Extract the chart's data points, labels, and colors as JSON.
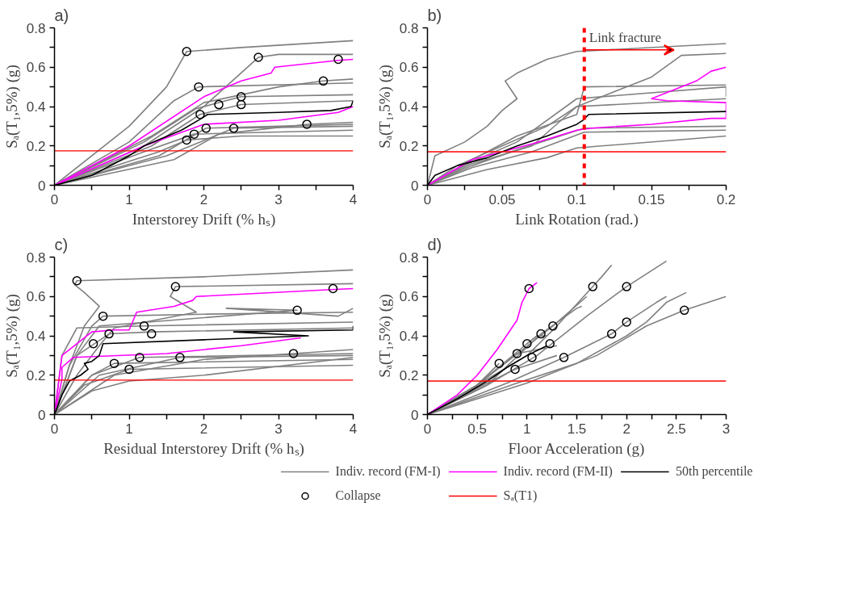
{
  "chart_data": [
    {
      "type": "line",
      "title": "a)",
      "xlabel": "Interstorey Drift (% hₛ)",
      "ylabel": "Sₐ(T₁,5%) (g)",
      "xlim": [
        0,
        4
      ],
      "ylim": [
        0,
        0.8
      ],
      "xticks": [
        0,
        {
          "value": 0.5,
          "label": null
        },
        1,
        {
          "value": 1.5,
          "label": null
        },
        2,
        {
          "value": 2.5,
          "label": null
        },
        3,
        {
          "value": 3.5,
          "label": null
        },
        4
      ],
      "yticks": [
        0,
        {
          "value": 0.1,
          "label": null
        },
        0.2,
        {
          "value": 0.3,
          "label": null
        },
        0.4,
        {
          "value": 0.5,
          "label": null
        },
        0.6,
        {
          "value": 0.7,
          "label": null
        },
        0.8
      ],
      "grid": false,
      "line_style": "solid",
      "marker": "none",
      "ref_lines": [
        {
          "axis": "y",
          "value": 0.175,
          "color": "#ff0000",
          "line_style": "solid"
        }
      ],
      "series": [
        {
          "color": "#808080",
          "x": [
            0,
            1,
            1.5,
            1.77,
            2.5,
            4
          ],
          "values": [
            0,
            0.3,
            0.5,
            0.68,
            0.7,
            0.735
          ]
        },
        {
          "color": "#808080",
          "x": [
            0,
            1.2,
            2,
            2.73,
            3,
            4
          ],
          "values": [
            0,
            0.2,
            0.4,
            0.65,
            0.665,
            0.665
          ]
        },
        {
          "color": "#808080",
          "x": [
            0,
            1,
            1.6,
            1.93,
            4
          ],
          "values": [
            0,
            0.22,
            0.43,
            0.5,
            0.52
          ]
        },
        {
          "color": "#808080",
          "x": [
            0,
            1.3,
            2,
            3,
            3.6,
            4
          ],
          "values": [
            0,
            0.25,
            0.42,
            0.5,
            0.53,
            0.54
          ]
        },
        {
          "color": "#808080",
          "x": [
            0,
            1.2,
            1.9,
            2.5,
            4
          ],
          "values": [
            0,
            0.22,
            0.39,
            0.45,
            0.46
          ]
        },
        {
          "color": "#808080",
          "x": [
            0,
            1.3,
            1.95,
            2.5,
            4
          ],
          "values": [
            0,
            0.2,
            0.36,
            0.41,
            0.43
          ]
        },
        {
          "color": "#808080",
          "x": [
            0,
            1.4,
            2.03,
            3,
            4
          ],
          "values": [
            0,
            0.15,
            0.29,
            0.3,
            0.31
          ]
        },
        {
          "color": "#808080",
          "x": [
            0,
            1.5,
            2.4,
            4
          ],
          "values": [
            0,
            0.15,
            0.29,
            0.3
          ]
        },
        {
          "color": "#808080",
          "x": [
            0,
            1.6,
            2.2,
            3.38,
            4
          ],
          "values": [
            0,
            0.13,
            0.26,
            0.31,
            0.32
          ]
        },
        {
          "color": "#808080",
          "x": [
            0,
            1.2,
            1.87,
            4
          ],
          "values": [
            0,
            0.17,
            0.26,
            0.28
          ]
        },
        {
          "color": "#808080",
          "x": [
            0,
            1.4,
            1.77,
            2.5,
            4
          ],
          "values": [
            0,
            0.17,
            0.23,
            0.25,
            0.25
          ]
        },
        {
          "color": "#ff00ff",
          "x": [
            0,
            1,
            2,
            2.5,
            2.9,
            2.95,
            3.8,
            4
          ],
          "values": [
            0,
            0.2,
            0.45,
            0.53,
            0.57,
            0.6,
            0.635,
            0.64
          ]
        },
        {
          "color": "#ff00ff",
          "x": [
            0,
            1.2,
            2,
            3,
            3.8,
            4
          ],
          "values": [
            0,
            0.2,
            0.31,
            0.33,
            0.37,
            0.4
          ]
        },
        {
          "color": "#000000",
          "x": [
            0,
            0.5,
            1,
            1.2,
            1.7,
            1.97,
            2.05,
            3,
            3.7,
            3.97,
            4
          ],
          "values": [
            0,
            0.05,
            0.15,
            0.2,
            0.28,
            0.34,
            0.36,
            0.37,
            0.38,
            0.4,
            0.43
          ]
        },
        {
          "type": "scatter",
          "marker": "circle",
          "color": "#000000",
          "x": [
            1.77,
            2.73,
            3.8,
            1.93,
            3.6,
            2.5,
            2.2,
            2.5,
            1.95,
            2.03,
            2.4,
            3.38,
            1.87,
            1.77
          ],
          "values": [
            0.68,
            0.65,
            0.64,
            0.5,
            0.53,
            0.45,
            0.41,
            0.41,
            0.36,
            0.29,
            0.29,
            0.31,
            0.26,
            0.23
          ]
        }
      ]
    },
    {
      "type": "line",
      "title": "b)",
      "xlabel": "Link Rotation (rad.)",
      "ylabel": "Sₐ(T₁,5%) (g)",
      "xlim": [
        0,
        0.2
      ],
      "ylim": [
        0,
        0.8
      ],
      "xticks": [
        0,
        {
          "value": 0.025,
          "label": null
        },
        0.05,
        {
          "value": 0.075,
          "label": null
        },
        0.1,
        {
          "value": 0.125,
          "label": null
        },
        0.15,
        {
          "value": 0.175,
          "label": null
        },
        0.2
      ],
      "yticks": [
        0,
        {
          "value": 0.1,
          "label": null
        },
        0.2,
        {
          "value": 0.3,
          "label": null
        },
        0.4,
        {
          "value": 0.5,
          "label": null
        },
        0.6,
        {
          "value": 0.7,
          "label": null
        },
        0.8
      ],
      "grid": false,
      "line_style": "solid",
      "marker": "none",
      "ref_lines": [
        {
          "axis": "y",
          "value": 0.17,
          "color": "#ff0000",
          "line_style": "solid"
        },
        {
          "axis": "x",
          "value": 0.105,
          "label": "Link fracture",
          "color": "#ff0000",
          "line_style": "dashed"
        }
      ],
      "series": [
        {
          "color": "#808080",
          "x": [
            0,
            0.005,
            0.025,
            0.04,
            0.05,
            0.06,
            0.052,
            0.06,
            0.08,
            0.1,
            0.2
          ],
          "values": [
            0,
            0.15,
            0.22,
            0.3,
            0.38,
            0.44,
            0.53,
            0.57,
            0.64,
            0.68,
            0.72
          ]
        },
        {
          "color": "#808080",
          "x": [
            0,
            0.02,
            0.05,
            0.08,
            0.1,
            0.15,
            0.17,
            0.2
          ],
          "values": [
            0,
            0.1,
            0.2,
            0.3,
            0.4,
            0.55,
            0.66,
            0.67
          ]
        },
        {
          "color": "#808080",
          "x": [
            0,
            0.03,
            0.06,
            0.1,
            0.105,
            0.2
          ],
          "values": [
            0,
            0.13,
            0.25,
            0.36,
            0.5,
            0.51
          ]
        },
        {
          "color": "#808080",
          "x": [
            0,
            0.03,
            0.06,
            0.1,
            0.2,
            0.2
          ],
          "values": [
            0,
            0.12,
            0.22,
            0.44,
            0.5,
            0.45
          ]
        },
        {
          "color": "#808080",
          "x": [
            0,
            0.03,
            0.07,
            0.1,
            0.2
          ],
          "values": [
            0,
            0.11,
            0.2,
            0.4,
            0.44
          ]
        },
        {
          "color": "#808080",
          "x": [
            0,
            0.03,
            0.06,
            0.105,
            0.2
          ],
          "values": [
            0,
            0.1,
            0.18,
            0.29,
            0.3
          ]
        },
        {
          "color": "#808080",
          "x": [
            0,
            0.03,
            0.07,
            0.105,
            0.2
          ],
          "values": [
            0,
            0.09,
            0.17,
            0.27,
            0.28
          ]
        },
        {
          "color": "#808080",
          "x": [
            0,
            0.04,
            0.08,
            0.1,
            0.2
          ],
          "values": [
            0,
            0.08,
            0.14,
            0.19,
            0.25
          ]
        },
        {
          "color": "#ff00ff",
          "x": [
            0,
            0.03,
            0.07,
            0.1,
            0.11,
            0.15,
            0.19,
            0.2,
            0.2,
            0.16,
            0.15,
            0.18,
            0.19,
            0.2
          ],
          "values": [
            0,
            0.13,
            0.21,
            0.28,
            0.29,
            0.31,
            0.34,
            0.34,
            0.42,
            0.43,
            0.44,
            0.53,
            0.58,
            0.6
          ]
        },
        {
          "color": "#000000",
          "x": [
            0,
            0.005,
            0.02,
            0.04,
            0.06,
            0.08,
            0.1,
            0.104,
            0.108,
            0.2
          ],
          "values": [
            0,
            0.05,
            0.1,
            0.14,
            0.2,
            0.25,
            0.31,
            0.33,
            0.36,
            0.375
          ]
        }
      ]
    },
    {
      "type": "line",
      "title": "c)",
      "xlabel": "Residual Interstorey Drift (% hₛ)",
      "ylabel": "Sₐ(T₁,5%) (g)",
      "xlim": [
        0,
        4
      ],
      "ylim": [
        0,
        0.8
      ],
      "xticks": [
        0,
        {
          "value": 0.5,
          "label": null
        },
        1,
        {
          "value": 1.5,
          "label": null
        },
        2,
        {
          "value": 2.5,
          "label": null
        },
        3,
        {
          "value": 3.5,
          "label": null
        },
        4
      ],
      "yticks": [
        0,
        {
          "value": 0.1,
          "label": null
        },
        0.2,
        {
          "value": 0.3,
          "label": null
        },
        0.4,
        {
          "value": 0.5,
          "label": null
        },
        0.6,
        {
          "value": 0.7,
          "label": null
        },
        0.8
      ],
      "grid": false,
      "line_style": "solid",
      "marker": "none",
      "ref_lines": [
        {
          "axis": "y",
          "value": 0.175,
          "color": "#ff0000",
          "line_style": "solid"
        }
      ],
      "series": [
        {
          "color": "#808080",
          "x": [
            0,
            0.2,
            0.4,
            0.6,
            0.4,
            0.27,
            0.3,
            2,
            4
          ],
          "values": [
            0,
            0.25,
            0.45,
            0.55,
            0.62,
            0.66,
            0.68,
            0.7,
            0.735
          ]
        },
        {
          "color": "#808080",
          "x": [
            0,
            0.3,
            0.6,
            0.8,
            1.9,
            1.55,
            1.62,
            4
          ],
          "values": [
            0,
            0.2,
            0.35,
            0.44,
            0.52,
            0.6,
            0.65,
            0.665
          ]
        },
        {
          "color": "#808080",
          "x": [
            0,
            0.2,
            0.5,
            0.65,
            2,
            4
          ],
          "values": [
            0,
            0.25,
            0.45,
            0.5,
            0.51,
            0.52
          ]
        },
        {
          "color": "#808080",
          "x": [
            0,
            0.3,
            0.6,
            3.25,
            2.3,
            3.8,
            4
          ],
          "values": [
            0,
            0.3,
            0.45,
            0.53,
            0.54,
            0.5,
            0.54
          ]
        },
        {
          "color": "#808080",
          "x": [
            0,
            0.1,
            0.3,
            1.2,
            4
          ],
          "values": [
            0,
            0.3,
            0.44,
            0.45,
            0.47
          ]
        },
        {
          "color": "#808080",
          "x": [
            0,
            0.3,
            0.73,
            1.3,
            4
          ],
          "values": [
            0,
            0.3,
            0.41,
            0.42,
            0.44
          ]
        },
        {
          "color": "#808080",
          "x": [
            0,
            0.5,
            1.14,
            4
          ],
          "values": [
            0,
            0.2,
            0.29,
            0.31
          ]
        },
        {
          "color": "#808080",
          "x": [
            0,
            0.6,
            1.68,
            4
          ],
          "values": [
            0,
            0.2,
            0.29,
            0.3
          ]
        },
        {
          "color": "#808080",
          "x": [
            0,
            0.8,
            2,
            3.2,
            4
          ],
          "values": [
            0,
            0.2,
            0.28,
            0.31,
            0.33
          ]
        },
        {
          "color": "#808080",
          "x": [
            0,
            0.5,
            0.8,
            4
          ],
          "values": [
            0,
            0.2,
            0.26,
            0.28
          ]
        },
        {
          "color": "#808080",
          "x": [
            0,
            0.4,
            1,
            4
          ],
          "values": [
            0,
            0.15,
            0.23,
            0.25
          ]
        },
        {
          "color": "#808080",
          "x": [
            0,
            0.5,
            1,
            2,
            4
          ],
          "values": [
            0,
            0.12,
            0.17,
            0.2,
            0.29
          ]
        },
        {
          "color": "#ff00ff",
          "x": [
            0,
            0.1,
            0.5,
            0.8,
            1,
            1.1,
            1.6,
            1.85,
            1.9,
            3.7,
            4
          ],
          "values": [
            0,
            0.3,
            0.42,
            0.43,
            0.43,
            0.52,
            0.55,
            0.58,
            0.6,
            0.635,
            0.64
          ]
        },
        {
          "color": "#ff00ff",
          "x": [
            0,
            0.1,
            0.1,
            0.25,
            1.5,
            2.5,
            3.3
          ],
          "values": [
            0,
            0.18,
            0.24,
            0.29,
            0.31,
            0.35,
            0.39
          ]
        },
        {
          "color": "#000000",
          "x": [
            0,
            0.1,
            0.2,
            0.35,
            0.45,
            0.4,
            0.5,
            0.6,
            0.65,
            2,
            3.4,
            2.4,
            4,
            4
          ],
          "values": [
            0,
            0.1,
            0.17,
            0.2,
            0.23,
            0.26,
            0.27,
            0.3,
            0.36,
            0.38,
            0.4,
            0.42,
            0.43,
            0.45
          ]
        },
        {
          "type": "scatter",
          "marker": "circle",
          "color": "#000000",
          "x": [
            0.3,
            1.62,
            3.73,
            0.65,
            3.25,
            1.2,
            0.73,
            1.3,
            0.52,
            1.14,
            1.68,
            3.2,
            0.8,
            1.0
          ],
          "values": [
            0.68,
            0.65,
            0.64,
            0.5,
            0.53,
            0.45,
            0.41,
            0.41,
            0.36,
            0.29,
            0.29,
            0.31,
            0.26,
            0.23
          ]
        }
      ]
    },
    {
      "type": "line",
      "title": "d)",
      "xlabel": "Floor Acceleration (g)",
      "ylabel": "Sₐ(T₁,5%) (g)",
      "xlim": [
        0,
        3
      ],
      "ylim": [
        0,
        0.8
      ],
      "xticks": [
        0,
        {
          "value": 0.25,
          "label": null
        },
        0.5,
        {
          "value": 0.75,
          "label": null
        },
        1,
        {
          "value": 1.25,
          "label": null
        },
        1.5,
        {
          "value": 1.75,
          "label": null
        },
        2,
        {
          "value": 2.25,
          "label": null
        },
        2.5,
        {
          "value": 2.75,
          "label": null
        },
        3
      ],
      "yticks": [
        0,
        {
          "value": 0.1,
          "label": null
        },
        0.2,
        {
          "value": 0.3,
          "label": null
        },
        0.4,
        {
          "value": 0.5,
          "label": null
        },
        0.6,
        {
          "value": 0.7,
          "label": null
        },
        0.8
      ],
      "grid": false,
      "line_style": "solid",
      "marker": "none",
      "legend": "bottom",
      "ref_lines": [
        {
          "axis": "y",
          "value": 0.17,
          "label": "Sₐ(T1)",
          "color": "#ff0000",
          "line_style": "solid"
        }
      ],
      "series": [
        {
          "name": "Indiv. record (FM-I)",
          "color": "#808080",
          "x": [
            0,
            0.5,
            1,
            1.3,
            1.66,
            1.75,
            1.85
          ],
          "values": [
            0,
            0.15,
            0.3,
            0.45,
            0.65,
            0.7,
            0.76
          ]
        },
        {
          "color": "#808080",
          "x": [
            0,
            0.6,
            1.1,
            1.6,
            2,
            2.4
          ],
          "values": [
            0,
            0.15,
            0.3,
            0.5,
            0.65,
            0.78
          ]
        },
        {
          "color": "#808080",
          "x": [
            0,
            0.5,
            1.26,
            1.6
          ],
          "values": [
            0,
            0.15,
            0.45,
            0.6
          ]
        },
        {
          "color": "#808080",
          "x": [
            0,
            0.6,
            1.14,
            1.5,
            1.55
          ],
          "values": [
            0,
            0.15,
            0.41,
            0.54,
            0.55
          ]
        },
        {
          "color": "#808080",
          "x": [
            0,
            0.5,
            1.0,
            1.1,
            1.2
          ],
          "values": [
            0,
            0.15,
            0.36,
            0.4,
            0.4
          ]
        },
        {
          "color": "#808080",
          "x": [
            0,
            0.5,
            0.9,
            1.3
          ],
          "values": [
            0,
            0.15,
            0.31,
            0.35
          ]
        },
        {
          "color": "#808080",
          "x": [
            0,
            0.8,
            1.37,
            1.85,
            2.0,
            2.3,
            2.4
          ],
          "values": [
            0,
            0.16,
            0.29,
            0.41,
            0.47,
            0.57,
            0.6
          ]
        },
        {
          "color": "#808080",
          "x": [
            0,
            0.9,
            1.5,
            2,
            2.2,
            2.4,
            2.6
          ],
          "values": [
            0,
            0.16,
            0.26,
            0.4,
            0.47,
            0.57,
            0.62
          ]
        },
        {
          "color": "#808080",
          "x": [
            0,
            1,
            1.7,
            2.2,
            2.58,
            3
          ],
          "values": [
            0,
            0.16,
            0.3,
            0.45,
            0.53,
            0.6
          ]
        },
        {
          "color": "#808080",
          "x": [
            0,
            0.5,
            0.72
          ],
          "values": [
            0,
            0.15,
            0.26
          ]
        },
        {
          "color": "#808080",
          "x": [
            0,
            0.6,
            0.88,
            1.3
          ],
          "values": [
            0,
            0.16,
            0.23,
            0.3
          ]
        },
        {
          "name": "Indiv. record (FM-II)",
          "color": "#ff00ff",
          "x": [
            0,
            0.3,
            0.5,
            0.7,
            0.9,
            0.95,
            1.02,
            1.1
          ],
          "values": [
            0,
            0.1,
            0.2,
            0.33,
            0.48,
            0.57,
            0.64,
            0.67
          ]
        },
        {
          "name": "50th percentile",
          "color": "#000000",
          "x": [
            0,
            0.3,
            0.6,
            0.8,
            1.0,
            1.2
          ],
          "values": [
            0,
            0.08,
            0.17,
            0.24,
            0.3,
            0.35
          ]
        },
        {
          "name": "Collapse",
          "type": "scatter",
          "marker": "circle",
          "color": "#000000",
          "x": [
            1.02,
            1.66,
            2.0,
            2.58,
            1.26,
            1.14,
            1.85,
            2.0,
            1.0,
            0.9,
            1.23,
            0.72,
            0.88,
            1.05,
            1.37
          ],
          "values": [
            0.64,
            0.65,
            0.65,
            0.53,
            0.45,
            0.41,
            0.41,
            0.47,
            0.36,
            0.31,
            0.36,
            0.26,
            0.23,
            0.29,
            0.29
          ]
        }
      ]
    }
  ]
}
